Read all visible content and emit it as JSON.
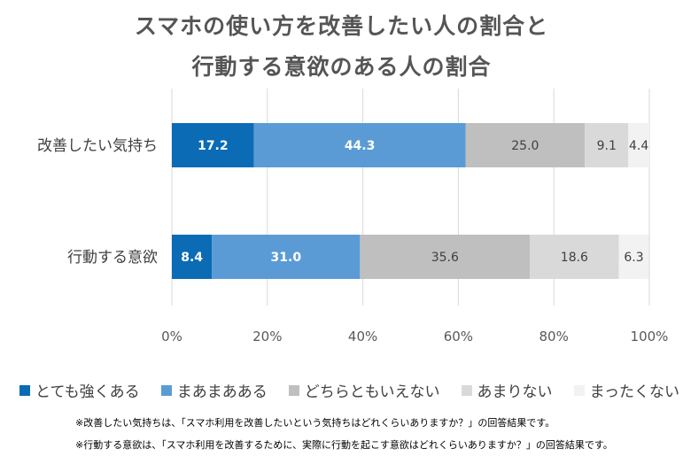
{
  "chart_data": {
    "type": "bar",
    "orientation": "horizontal",
    "stacked": true,
    "title_lines": [
      "スマホの使い方を改善したい人の割合と",
      "行動する意欲のある人の割合"
    ],
    "categories": [
      "改善したい気持ち",
      "行動する意欲"
    ],
    "series": [
      {
        "name": "とても強くある",
        "color": "#0b6bb5",
        "label_color": "#ffffff",
        "values": [
          17.2,
          8.4
        ]
      },
      {
        "name": "まあまあある",
        "color": "#5b9bd5",
        "label_color": "#ffffff",
        "values": [
          44.3,
          31.0
        ]
      },
      {
        "name": "どちらともいえない",
        "color": "#bfbfbf",
        "label_color": "#404040",
        "values": [
          25.0,
          35.6
        ]
      },
      {
        "name": "あまりない",
        "color": "#d9d9d9",
        "label_color": "#404040",
        "values": [
          9.1,
          18.6
        ]
      },
      {
        "name": "まったくない",
        "color": "#f2f2f2",
        "label_color": "#404040",
        "values": [
          4.4,
          6.3
        ]
      }
    ],
    "xlim": [
      0,
      100
    ],
    "xticks": [
      "0%",
      "20%",
      "40%",
      "60%",
      "80%",
      "100%"
    ],
    "grid": true,
    "legend_position": "bottom"
  },
  "notes": [
    "※改善したい気持ちは、「スマホ利用を改善したいという気持ちはどれくらいありますか？」の回答結果です。",
    "※行動する意欲は、「スマホ利用を改善するために、実際に行動を起こす意欲はどれくらいありますか？」の回答結果です。"
  ]
}
